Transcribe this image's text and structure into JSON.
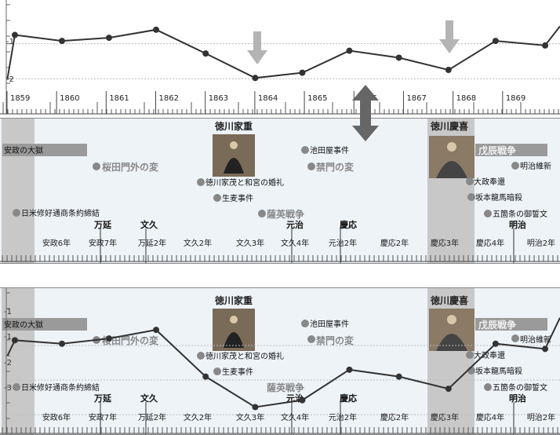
{
  "top_panel": {
    "y_tick_labels": [
      "-1",
      "-2"
    ],
    "year_labels": [
      "1859",
      "1860",
      "1861",
      "1862",
      "1863",
      "1864",
      "1865",
      "1866",
      "1867",
      "1868",
      "1869"
    ]
  },
  "timeline": {
    "shoguns": [
      "徳川家重",
      "徳川慶喜"
    ],
    "events": [
      "安政の大獄",
      "桜田門外の変",
      "徳川家茂と和宮の婚礼",
      "生麦事件",
      "池田屋事件",
      "禁門の変",
      "薩英戦争",
      "戊辰戦争",
      "明治維新",
      "大政奉還",
      "坂本龍馬暗殺",
      "五箇条の御誓文",
      "日米修好通商条約締結"
    ],
    "era_names": [
      "万延",
      "文久",
      "元治",
      "慶応",
      "明治"
    ],
    "era_year_labels": [
      "安政6年",
      "安政7年",
      "万延2年",
      "文久2年",
      "文久3年",
      "文久4年",
      "元治2年",
      "慶応2年",
      "慶応3年",
      "慶応4年",
      "明治2年"
    ]
  },
  "bottom_panel": {
    "y_tick_labels": [
      "-1",
      "-1",
      "-2",
      "-3"
    ]
  },
  "colors": {
    "line": "#333333",
    "highlight_band": "#c8c8c8",
    "timeline_bg": "#eef3f8",
    "event_label_bg": "#9a9a9a",
    "arrow_light": "#b4b4b4",
    "arrow_dark": "#666666"
  },
  "chart_data": [
    {
      "type": "line",
      "x": [
        1858.85,
        1859.0,
        1859.95,
        1860.9,
        1861.85,
        1862.85,
        1863.85,
        1864.8,
        1865.75,
        1866.75,
        1867.75,
        1868.7,
        1869.7,
        1870.0
      ],
      "values": [
        -2.0,
        -0.75,
        -0.92,
        -0.83,
        -0.6,
        -1.28,
        -1.98,
        -1.83,
        -1.2,
        -1.4,
        -1.75,
        -0.92,
        -1.05,
        -0.5
      ],
      "ylim": [
        -2.4,
        0.25
      ],
      "xlim": [
        1858.7,
        1870.0
      ]
    },
    {
      "type": "line",
      "x": [
        1858.85,
        1859.0,
        1859.95,
        1860.9,
        1861.85,
        1862.85,
        1863.85,
        1864.8,
        1865.75,
        1866.75,
        1867.75,
        1868.7,
        1869.7,
        1870.0
      ],
      "values": [
        -1.3,
        -0.85,
        -0.95,
        -0.8,
        -0.55,
        -1.9,
        -2.78,
        -2.58,
        -1.7,
        -1.9,
        -2.25,
        -0.95,
        -1.1,
        -0.2
      ],
      "ylim": [
        -3.2,
        0.2
      ],
      "xlim": [
        1858.7,
        1870.0
      ]
    }
  ]
}
